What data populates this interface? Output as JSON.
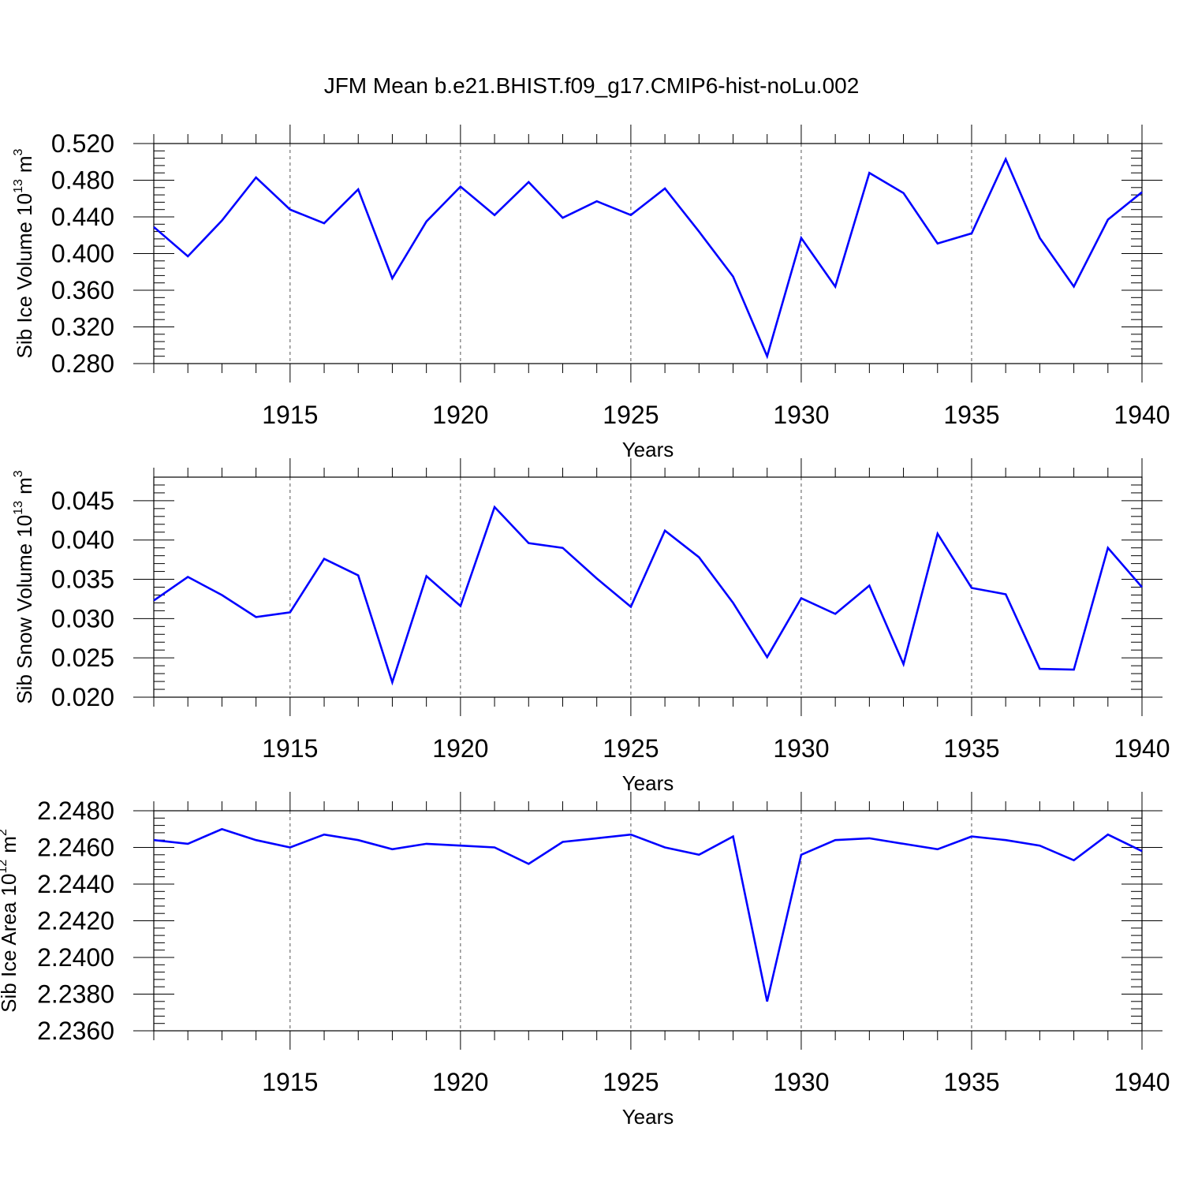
{
  "title": "JFM Mean b.e21.BHIST.f09_g17.CMIP6-hist-noLu.002",
  "chart_data": [
    {
      "type": "line",
      "ylabel_text": "Sib Ice Volume 10",
      "ylabel_exp": "13",
      "ylabel_unit": "m",
      "ylabel_unit_exp": "3",
      "xlabel": "Years",
      "xlim": [
        1911,
        1940
      ],
      "ylim": [
        0.28,
        0.52
      ],
      "yticks": [
        "0.280",
        "0.320",
        "0.360",
        "0.400",
        "0.440",
        "0.480",
        "0.520"
      ],
      "xticks": [
        "1915",
        "1920",
        "1925",
        "1930",
        "1935",
        "1940"
      ],
      "line_color": "#0000ff",
      "x": [
        1911,
        1912,
        1913,
        1914,
        1915,
        1916,
        1917,
        1918,
        1919,
        1920,
        1921,
        1922,
        1923,
        1924,
        1925,
        1926,
        1927,
        1928,
        1929,
        1930,
        1931,
        1932,
        1933,
        1934,
        1935,
        1936,
        1937,
        1938,
        1939,
        1940
      ],
      "values": [
        0.429,
        0.397,
        0.436,
        0.483,
        0.448,
        0.433,
        0.47,
        0.373,
        0.435,
        0.473,
        0.442,
        0.478,
        0.439,
        0.457,
        0.442,
        0.471,
        0.424,
        0.375,
        0.288,
        0.417,
        0.364,
        0.488,
        0.466,
        0.411,
        0.422,
        0.503,
        0.417,
        0.364,
        0.437,
        0.467
      ]
    },
    {
      "type": "line",
      "ylabel_text": "Sib Snow Volume 10",
      "ylabel_exp": "13",
      "ylabel_unit": "m",
      "ylabel_unit_exp": "3",
      "xlabel": "Years",
      "xlim": [
        1911,
        1940
      ],
      "ylim": [
        0.02,
        0.048
      ],
      "yticks": [
        "0.020",
        "0.025",
        "0.030",
        "0.035",
        "0.040",
        "0.045"
      ],
      "xticks": [
        "1915",
        "1920",
        "1925",
        "1930",
        "1935",
        "1940"
      ],
      "line_color": "#0000ff",
      "x": [
        1911,
        1912,
        1913,
        1914,
        1915,
        1916,
        1917,
        1918,
        1919,
        1920,
        1921,
        1922,
        1923,
        1924,
        1925,
        1926,
        1927,
        1928,
        1929,
        1930,
        1931,
        1932,
        1933,
        1934,
        1935,
        1936,
        1937,
        1938,
        1939,
        1940
      ],
      "values": [
        0.0323,
        0.0353,
        0.033,
        0.0302,
        0.0308,
        0.0376,
        0.0355,
        0.0219,
        0.0354,
        0.0316,
        0.0442,
        0.0396,
        0.039,
        0.0351,
        0.0315,
        0.0412,
        0.0378,
        0.032,
        0.0251,
        0.0326,
        0.0306,
        0.0342,
        0.0242,
        0.0408,
        0.0339,
        0.0331,
        0.0236,
        0.0235,
        0.039,
        0.034
      ]
    },
    {
      "type": "line",
      "ylabel_text": "Sib Ice Area 10",
      "ylabel_exp": "12",
      "ylabel_unit": "m",
      "ylabel_unit_exp": "2",
      "xlabel": "Years",
      "xlim": [
        1911,
        1940
      ],
      "ylim": [
        2.236,
        2.248
      ],
      "yticks": [
        "2.2360",
        "2.2380",
        "2.2400",
        "2.2420",
        "2.2440",
        "2.2460",
        "2.2480"
      ],
      "xticks": [
        "1915",
        "1920",
        "1925",
        "1930",
        "1935",
        "1940"
      ],
      "line_color": "#0000ff",
      "x": [
        1911,
        1912,
        1913,
        1914,
        1915,
        1916,
        1917,
        1918,
        1919,
        1920,
        1921,
        1922,
        1923,
        1924,
        1925,
        1926,
        1927,
        1928,
        1929,
        1930,
        1931,
        1932,
        1933,
        1934,
        1935,
        1936,
        1937,
        1938,
        1939,
        1940
      ],
      "values": [
        2.2464,
        2.2462,
        2.247,
        2.2464,
        2.246,
        2.2467,
        2.2464,
        2.2459,
        2.2462,
        2.2461,
        2.246,
        2.2451,
        2.2463,
        2.2465,
        2.2467,
        2.246,
        2.2456,
        2.2466,
        2.2376,
        2.2456,
        2.2464,
        2.2465,
        2.2462,
        2.2459,
        2.2466,
        2.2464,
        2.2461,
        2.2453,
        2.2467,
        2.2458
      ]
    }
  ]
}
